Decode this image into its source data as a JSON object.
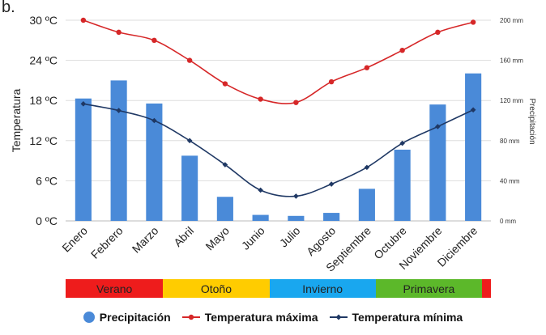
{
  "panel_label": "b.",
  "colors": {
    "bar": "#4a8ad8",
    "tmax": "#d62728",
    "tmin": "#1f3864",
    "grid": "#dddddd"
  },
  "chart_data": {
    "type": "bar+line",
    "categories": [
      "Enero",
      "Febrero",
      "Marzo",
      "Abril",
      "Mayo",
      "Junio",
      "Julio",
      "Agosto",
      "Septiembre",
      "Octubre",
      "Noviembre",
      "Diciembre"
    ],
    "series": [
      {
        "name": "Precipitación",
        "type": "bar",
        "axis": "right",
        "values": [
          122,
          140,
          117,
          65,
          24,
          6,
          5,
          8,
          32,
          71,
          116,
          147
        ]
      },
      {
        "name": "Temperatura máxima",
        "type": "line",
        "axis": "left",
        "values": [
          30.0,
          28.2,
          27.0,
          24.0,
          20.5,
          18.2,
          17.7,
          20.8,
          22.9,
          25.5,
          28.2,
          29.7
        ]
      },
      {
        "name": "Temperatura mínima",
        "type": "line",
        "axis": "left",
        "values": [
          17.5,
          16.5,
          15.0,
          12.0,
          8.4,
          4.6,
          3.7,
          5.5,
          8.0,
          11.6,
          14.1,
          16.6
        ]
      }
    ],
    "ylabel": "Temperatura",
    "y2label": "Precipitación",
    "ylim": [
      0,
      30
    ],
    "y2lim": [
      0,
      200
    ],
    "yticks": [
      "0 ºC",
      "6 ºC",
      "12 ºC",
      "18 ºC",
      "24 ºC",
      "30 ºC"
    ],
    "y2ticks": [
      "0 mm",
      "40 mm",
      "80 mm",
      "120 mm",
      "160 mm",
      "200 mm"
    ],
    "grid": true,
    "legend_position": "bottom"
  },
  "seasons": [
    {
      "label": "Verano",
      "color": "#ee1c1c",
      "months": 2.75
    },
    {
      "label": "Otoño",
      "color": "#ffcc00",
      "months": 3.0
    },
    {
      "label": "Invierno",
      "color": "#19a7ef",
      "months": 3.0
    },
    {
      "label": "Primavera",
      "color": "#5cb82a",
      "months": 3.0
    },
    {
      "label": "",
      "color": "#ee1c1c",
      "months": 0.25
    }
  ]
}
